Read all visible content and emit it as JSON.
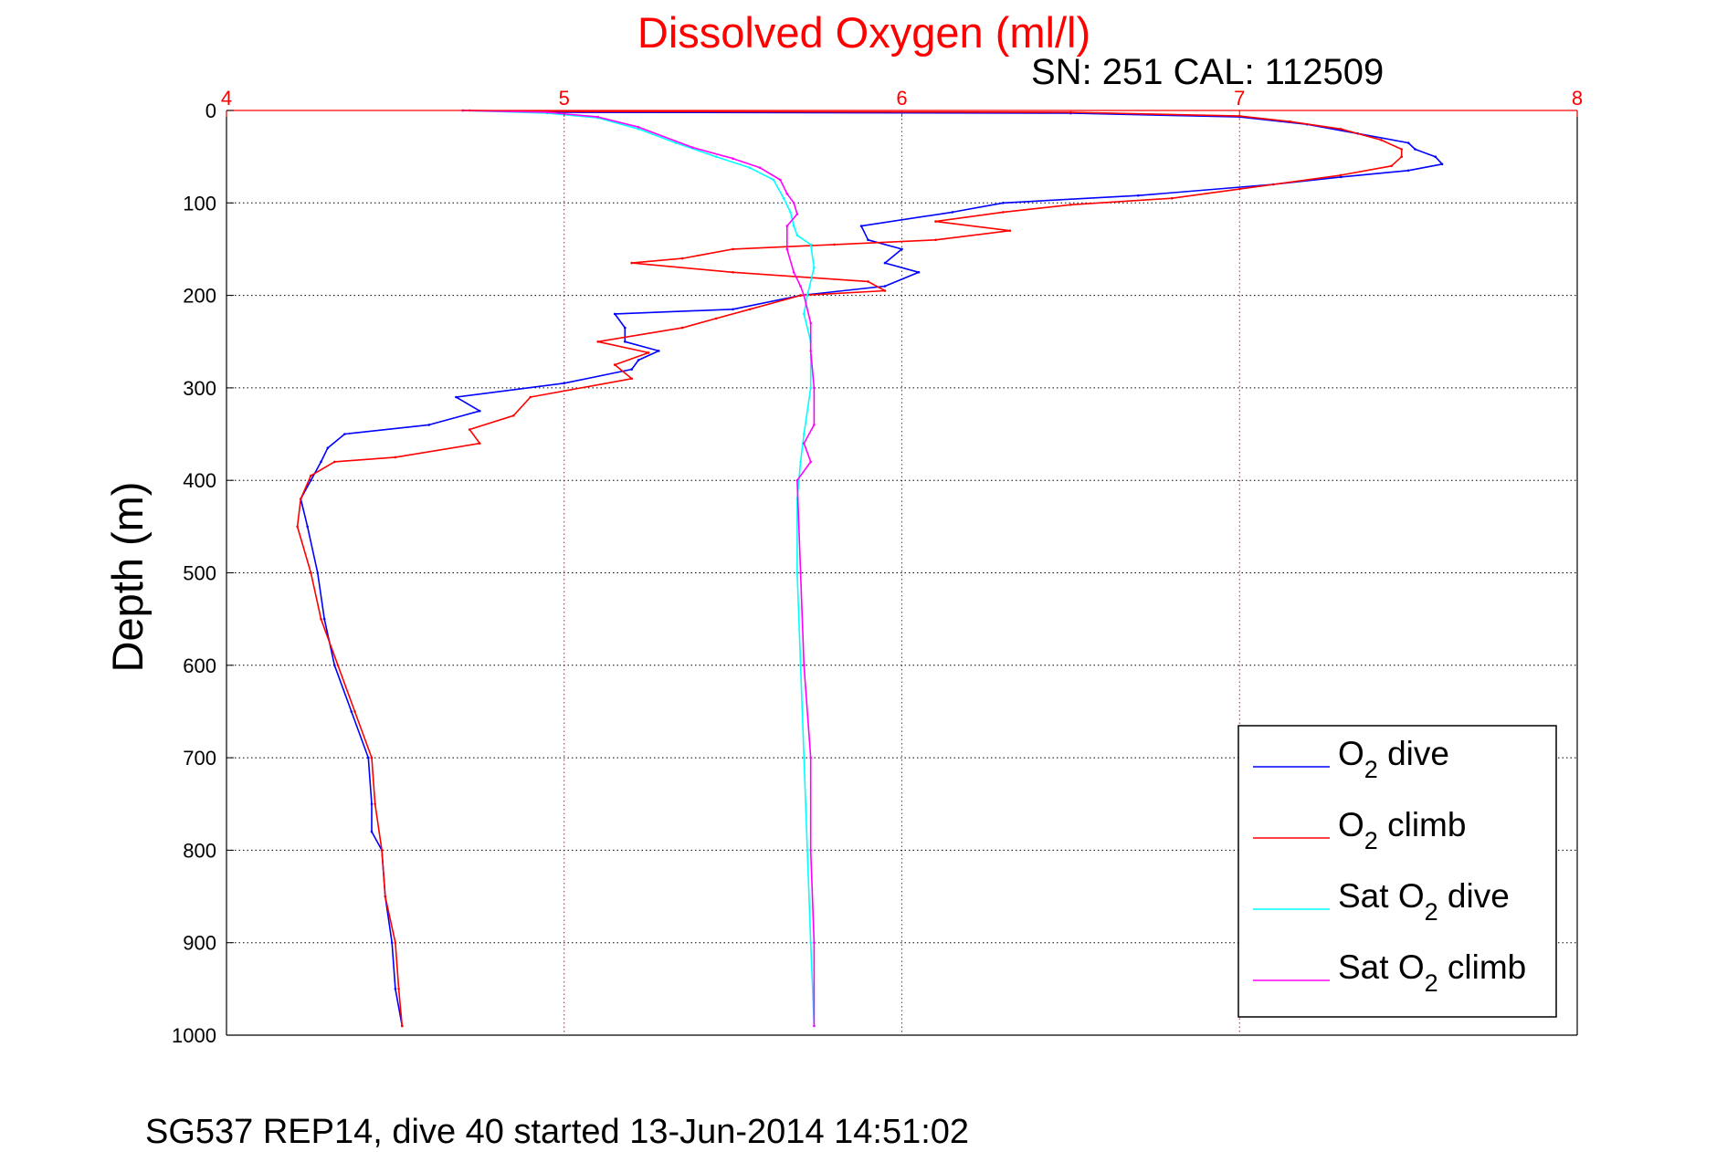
{
  "chart_data": {
    "type": "line",
    "title": "Dissolved Oxygen (ml/l)",
    "subtitle": "SN: 251  CAL: 112509",
    "footer": "SG537 REP14, dive 40 started 13-Jun-2014 14:51:02",
    "xlabel": "",
    "ylabel": "Depth (m)",
    "xlim": [
      4,
      8
    ],
    "ylim": [
      0,
      1000
    ],
    "y_reversed": true,
    "x_axis_position": "top",
    "x_ticks": [
      "4",
      "5",
      "6",
      "7",
      "8"
    ],
    "y_ticks": [
      "0",
      "100",
      "200",
      "300",
      "400",
      "500",
      "600",
      "700",
      "800",
      "900",
      "1000"
    ],
    "grid": true,
    "legend_position": "bottom-right",
    "colors": {
      "title": "#ff0000",
      "x_ticks": "#ff0000",
      "grid_x": "#ff0000",
      "grid_y": "#000000"
    },
    "series": [
      {
        "name": "O2 dive",
        "legend_label": {
          "base": "O",
          "sub": "2",
          "rest": " dive"
        },
        "color": "#0000ff",
        "points": [
          [
            4.7,
            0
          ],
          [
            5.0,
            2
          ],
          [
            6.5,
            3
          ],
          [
            7.0,
            7
          ],
          [
            7.2,
            15
          ],
          [
            7.35,
            25
          ],
          [
            7.5,
            35
          ],
          [
            7.52,
            42
          ],
          [
            7.58,
            50
          ],
          [
            7.6,
            58
          ],
          [
            7.5,
            65
          ],
          [
            7.3,
            72
          ],
          [
            7.1,
            80
          ],
          [
            6.7,
            92
          ],
          [
            6.3,
            100
          ],
          [
            6.15,
            110
          ],
          [
            5.88,
            125
          ],
          [
            5.9,
            140
          ],
          [
            6.0,
            150
          ],
          [
            5.95,
            165
          ],
          [
            6.05,
            175
          ],
          [
            5.95,
            190
          ],
          [
            5.7,
            200
          ],
          [
            5.5,
            215
          ],
          [
            5.15,
            220
          ],
          [
            5.18,
            235
          ],
          [
            5.18,
            250
          ],
          [
            5.28,
            260
          ],
          [
            5.22,
            270
          ],
          [
            5.2,
            280
          ],
          [
            5.0,
            295
          ],
          [
            4.68,
            310
          ],
          [
            4.75,
            325
          ],
          [
            4.6,
            340
          ],
          [
            4.35,
            350
          ],
          [
            4.3,
            365
          ],
          [
            4.28,
            380
          ],
          [
            4.25,
            400
          ],
          [
            4.22,
            420
          ],
          [
            4.24,
            450
          ],
          [
            4.27,
            500
          ],
          [
            4.29,
            550
          ],
          [
            4.32,
            600
          ],
          [
            4.37,
            650
          ],
          [
            4.42,
            700
          ],
          [
            4.43,
            750
          ],
          [
            4.43,
            780
          ],
          [
            4.46,
            800
          ],
          [
            4.47,
            850
          ],
          [
            4.49,
            900
          ],
          [
            4.5,
            950
          ],
          [
            4.52,
            990
          ]
        ]
      },
      {
        "name": "O2 climb",
        "legend_label": {
          "base": "O",
          "sub": "2",
          "rest": " climb"
        },
        "color": "#ff0000",
        "points": [
          [
            4.72,
            0
          ],
          [
            5.0,
            1
          ],
          [
            6.5,
            2
          ],
          [
            7.0,
            6
          ],
          [
            7.15,
            12
          ],
          [
            7.3,
            20
          ],
          [
            7.42,
            32
          ],
          [
            7.48,
            42
          ],
          [
            7.48,
            50
          ],
          [
            7.45,
            60
          ],
          [
            7.3,
            70
          ],
          [
            7.0,
            85
          ],
          [
            6.8,
            95
          ],
          [
            6.5,
            102
          ],
          [
            6.3,
            110
          ],
          [
            6.1,
            120
          ],
          [
            6.32,
            130
          ],
          [
            6.1,
            140
          ],
          [
            5.8,
            145
          ],
          [
            5.5,
            150
          ],
          [
            5.35,
            160
          ],
          [
            5.2,
            165
          ],
          [
            5.5,
            175
          ],
          [
            5.9,
            185
          ],
          [
            5.95,
            195
          ],
          [
            5.7,
            200
          ],
          [
            5.55,
            215
          ],
          [
            5.45,
            225
          ],
          [
            5.35,
            235
          ],
          [
            5.1,
            250
          ],
          [
            5.25,
            262
          ],
          [
            5.15,
            275
          ],
          [
            5.2,
            290
          ],
          [
            4.9,
            310
          ],
          [
            4.85,
            330
          ],
          [
            4.72,
            345
          ],
          [
            4.75,
            360
          ],
          [
            4.5,
            375
          ],
          [
            4.32,
            380
          ],
          [
            4.25,
            395
          ],
          [
            4.22,
            420
          ],
          [
            4.21,
            450
          ],
          [
            4.25,
            500
          ],
          [
            4.28,
            550
          ],
          [
            4.33,
            600
          ],
          [
            4.38,
            650
          ],
          [
            4.43,
            700
          ],
          [
            4.44,
            750
          ],
          [
            4.46,
            800
          ],
          [
            4.47,
            850
          ],
          [
            4.5,
            900
          ],
          [
            4.51,
            950
          ],
          [
            4.52,
            990
          ]
        ]
      },
      {
        "name": "Sat O2 dive",
        "legend_label": {
          "base": "Sat O",
          "sub": "2",
          "rest": " dive"
        },
        "color": "#00ffff",
        "points": [
          [
            4.7,
            0
          ],
          [
            4.95,
            3
          ],
          [
            5.1,
            8
          ],
          [
            5.22,
            20
          ],
          [
            5.33,
            35
          ],
          [
            5.45,
            50
          ],
          [
            5.55,
            62
          ],
          [
            5.62,
            75
          ],
          [
            5.65,
            95
          ],
          [
            5.67,
            110
          ],
          [
            5.68,
            125
          ],
          [
            5.69,
            135
          ],
          [
            5.73,
            145
          ],
          [
            5.74,
            170
          ],
          [
            5.72,
            200
          ],
          [
            5.71,
            220
          ],
          [
            5.73,
            250
          ],
          [
            5.73,
            300
          ],
          [
            5.71,
            350
          ],
          [
            5.7,
            380
          ],
          [
            5.69,
            420
          ],
          [
            5.69,
            500
          ],
          [
            5.7,
            600
          ],
          [
            5.71,
            700
          ],
          [
            5.72,
            800
          ],
          [
            5.73,
            900
          ],
          [
            5.74,
            990
          ]
        ]
      },
      {
        "name": "Sat O2 climb",
        "legend_label": {
          "base": "Sat O",
          "sub": "2",
          "rest": " climb"
        },
        "color": "#ff00ff",
        "points": [
          [
            4.7,
            0
          ],
          [
            4.95,
            2
          ],
          [
            5.1,
            7
          ],
          [
            5.22,
            18
          ],
          [
            5.38,
            40
          ],
          [
            5.5,
            52
          ],
          [
            5.58,
            62
          ],
          [
            5.64,
            75
          ],
          [
            5.66,
            90
          ],
          [
            5.68,
            100
          ],
          [
            5.69,
            112
          ],
          [
            5.66,
            125
          ],
          [
            5.66,
            150
          ],
          [
            5.68,
            175
          ],
          [
            5.7,
            190
          ],
          [
            5.71,
            200
          ],
          [
            5.73,
            230
          ],
          [
            5.73,
            260
          ],
          [
            5.74,
            300
          ],
          [
            5.74,
            340
          ],
          [
            5.71,
            360
          ],
          [
            5.73,
            380
          ],
          [
            5.69,
            400
          ],
          [
            5.7,
            500
          ],
          [
            5.71,
            600
          ],
          [
            5.73,
            700
          ],
          [
            5.73,
            800
          ],
          [
            5.74,
            900
          ],
          [
            5.74,
            990
          ]
        ]
      }
    ]
  }
}
